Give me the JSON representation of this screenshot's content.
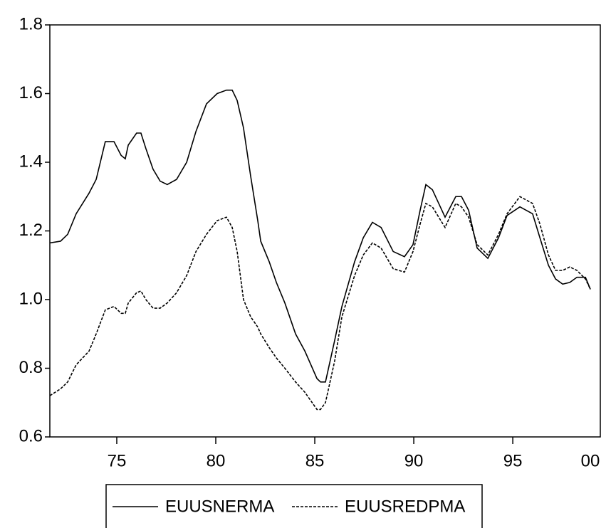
{
  "chart_data": {
    "type": "line",
    "x": [
      1971.62,
      1972.16,
      1972.52,
      1972.95,
      1973.6,
      1973.96,
      1974.42,
      1974.86,
      1975.22,
      1975.43,
      1975.58,
      1976.0,
      1976.22,
      1976.47,
      1976.83,
      1977.19,
      1977.55,
      1978.02,
      1978.53,
      1979.0,
      1979.53,
      1980.07,
      1980.54,
      1980.83,
      1981.08,
      1981.4,
      1981.76,
      1982.12,
      1982.27,
      1982.7,
      1983.06,
      1983.49,
      1984.03,
      1984.5,
      1985.11,
      1985.29,
      1985.54,
      1986.0,
      1986.37,
      1987.01,
      1987.45,
      1987.91,
      1988.35,
      1988.96,
      1989.53,
      1989.96,
      1990.32,
      1990.61,
      1990.94,
      1991.58,
      1992.12,
      1992.41,
      1992.77,
      1993.2,
      1993.74,
      1994.28,
      1994.71,
      1995.36,
      1996.0,
      1996.37,
      1996.8,
      1997.16,
      1997.52,
      1997.88,
      1998.24,
      1998.67,
      1998.92
    ],
    "series": [
      {
        "name": "EUUSNERMA",
        "color": "#000000",
        "dash": false,
        "values": [
          1.165,
          1.17,
          1.19,
          1.25,
          1.31,
          1.35,
          1.46,
          1.46,
          1.42,
          1.41,
          1.45,
          1.485,
          1.485,
          1.44,
          1.38,
          1.345,
          1.335,
          1.35,
          1.4,
          1.49,
          1.57,
          1.6,
          1.61,
          1.61,
          1.58,
          1.5,
          1.36,
          1.23,
          1.17,
          1.11,
          1.05,
          0.99,
          0.9,
          0.85,
          0.77,
          0.76,
          0.76,
          0.88,
          0.98,
          1.11,
          1.18,
          1.225,
          1.21,
          1.14,
          1.125,
          1.16,
          1.26,
          1.335,
          1.32,
          1.24,
          1.3,
          1.3,
          1.26,
          1.15,
          1.12,
          1.18,
          1.245,
          1.27,
          1.25,
          1.18,
          1.1,
          1.06,
          1.045,
          1.05,
          1.065,
          1.065,
          1.03
        ]
      },
      {
        "name": "EUUSREDPMA",
        "color": "#000000",
        "dash": true,
        "values": [
          0.72,
          0.74,
          0.76,
          0.81,
          0.85,
          0.9,
          0.97,
          0.98,
          0.96,
          0.96,
          0.99,
          1.02,
          1.025,
          1.0,
          0.975,
          0.975,
          0.99,
          1.02,
          1.07,
          1.14,
          1.19,
          1.23,
          1.24,
          1.21,
          1.14,
          1.0,
          0.95,
          0.92,
          0.9,
          0.86,
          0.83,
          0.8,
          0.76,
          0.73,
          0.68,
          0.68,
          0.7,
          0.82,
          0.95,
          1.07,
          1.13,
          1.165,
          1.15,
          1.09,
          1.08,
          1.14,
          1.22,
          1.28,
          1.27,
          1.21,
          1.28,
          1.27,
          1.24,
          1.16,
          1.13,
          1.19,
          1.25,
          1.3,
          1.28,
          1.22,
          1.13,
          1.085,
          1.085,
          1.095,
          1.085,
          1.06,
          1.03
        ]
      }
    ],
    "xlim": [
      1971.62,
      1999.42
    ],
    "xticks": [
      {
        "value": 1975,
        "label": "75"
      },
      {
        "value": 1980,
        "label": "80"
      },
      {
        "value": 1985,
        "label": "85"
      },
      {
        "value": 1990,
        "label": "90"
      },
      {
        "value": 1995,
        "label": "95"
      },
      {
        "value": 2000,
        "label": "00"
      }
    ],
    "ylim": [
      0.6,
      1.8
    ],
    "yticks": [
      {
        "value": 0.6,
        "label": "0.6"
      },
      {
        "value": 0.8,
        "label": "0.8"
      },
      {
        "value": 1.0,
        "label": "1.0"
      },
      {
        "value": 1.2,
        "label": "1.2"
      },
      {
        "value": 1.4,
        "label": "1.4"
      },
      {
        "value": 1.6,
        "label": "1.6"
      },
      {
        "value": 1.8,
        "label": "1.8"
      }
    ],
    "grid": false,
    "legend": "bottom"
  }
}
